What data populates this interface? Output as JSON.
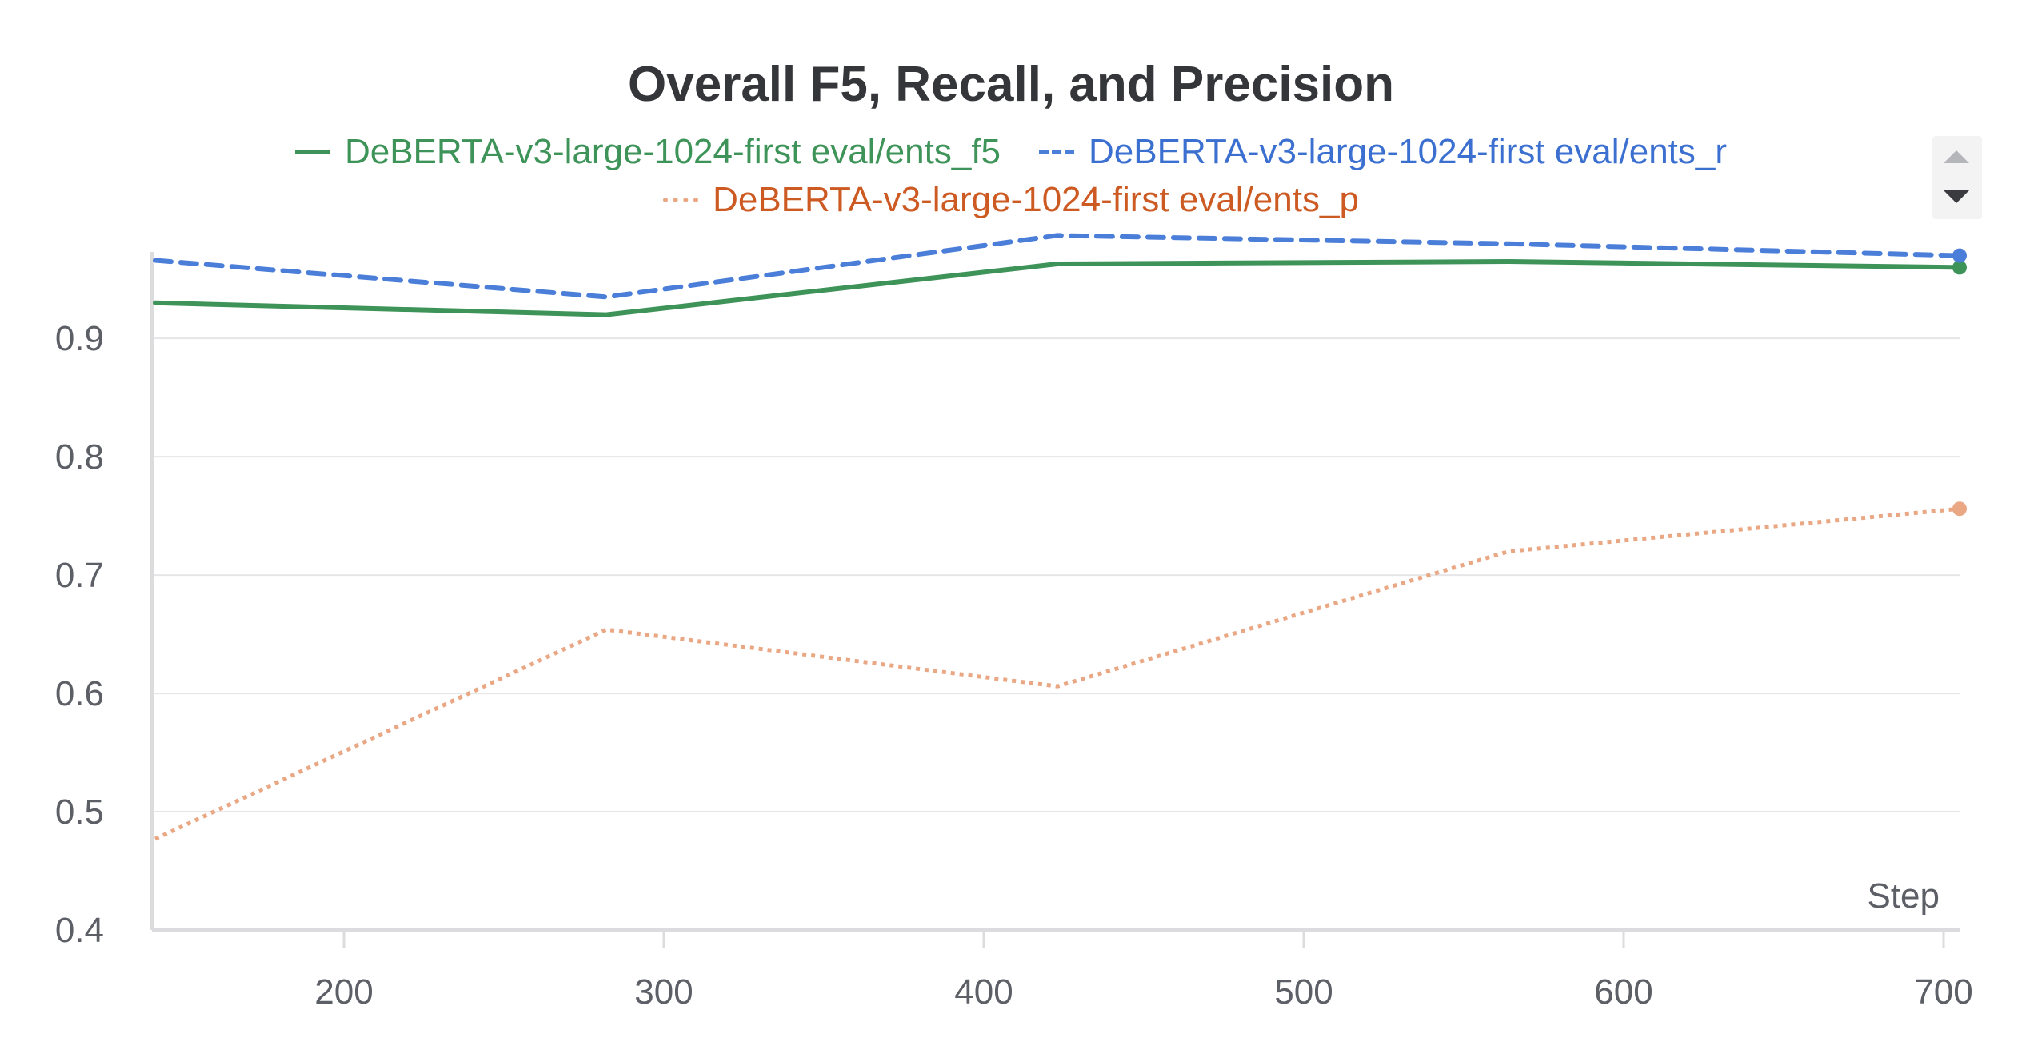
{
  "chart_data": {
    "type": "line",
    "title": "Overall F5, Recall, and Precision",
    "xlabel": "Step",
    "ylabel": "",
    "xlim": [
      140,
      705
    ],
    "ylim": [
      0.4,
      0.99
    ],
    "x_ticks": [
      200,
      300,
      400,
      500,
      600,
      700
    ],
    "y_ticks": [
      0.4,
      0.5,
      0.6,
      0.7,
      0.8,
      0.9
    ],
    "grid": true,
    "legend_position": "top",
    "x": [
      141,
      282,
      423,
      564,
      705
    ],
    "series": [
      {
        "name": "DeBERTA-v3-large-1024-first eval/ents_f5",
        "color": "#3d9358",
        "dash": "solid",
        "values": [
          0.93,
          0.92,
          0.963,
          0.965,
          0.96
        ]
      },
      {
        "name": "DeBERTA-v3-large-1024-first eval/ents_r",
        "color": "#4a7ed8",
        "dash": "dashed",
        "values": [
          0.966,
          0.935,
          0.987,
          0.98,
          0.97
        ]
      },
      {
        "name": "DeBERTA-v3-large-1024-first eval/ents_p",
        "color": "#eaa784",
        "label_color": "#cc5a22",
        "dash": "dotted",
        "values": [
          0.477,
          0.654,
          0.606,
          0.72,
          0.756
        ]
      }
    ]
  },
  "ui": {
    "scroll_up_icon": "triangle-up",
    "scroll_down_icon": "triangle-down"
  }
}
